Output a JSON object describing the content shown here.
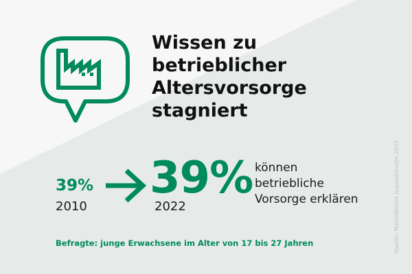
{
  "colors": {
    "accent": "#008a5e",
    "text": "#111111",
    "background": "#f7f7f7",
    "background_shape": "#e6ebe9",
    "source_text": "#cfcfcf"
  },
  "icon": {
    "name": "factory-in-speech-bubble-icon"
  },
  "headline": {
    "lines": [
      "Wissen zu",
      "betrieblicher",
      "Altersvorsorge",
      "stagniert"
    ]
  },
  "stats": {
    "before": {
      "value": "39%",
      "year": "2010"
    },
    "after": {
      "value": "39%",
      "year": "2022"
    },
    "description_lines": [
      "können",
      "betriebliche",
      "Vorsorge erklären"
    ]
  },
  "footnote": "Befragte: junge Erwachsene im Alter von 17 bis 27 Jahren",
  "source": "Quelle: MetallRente Jugendstudie 2022"
}
